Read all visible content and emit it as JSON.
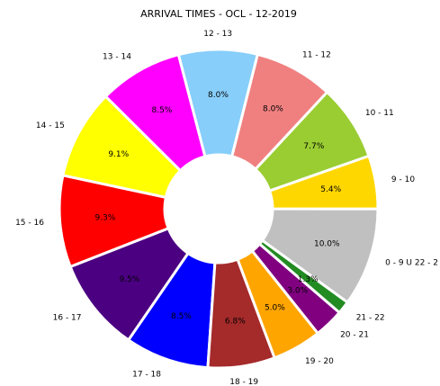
{
  "chart_data": {
    "type": "pie",
    "title": "ARRIVAL TIMES - OCL - 12-2019",
    "categories": [
      "0 - 9 U 22 - 2",
      "9 - 10",
      "10 - 11",
      "11 - 12",
      "12 - 13",
      "13 - 14",
      "14 - 15",
      "15 - 16",
      "16 - 17",
      "17 - 18",
      "18 - 19",
      "19 - 20",
      "20 - 21",
      "21 - 22"
    ],
    "values": [
      10.0,
      5.4,
      7.7,
      8.0,
      8.0,
      8.5,
      9.1,
      9.3,
      9.5,
      8.5,
      6.8,
      5.0,
      3.0,
      1.3
    ],
    "value_labels": [
      "10.0%",
      "5.4%",
      "7.7%",
      "8.0%",
      "8.0%",
      "8.5%",
      "9.1%",
      "9.3%",
      "9.5%",
      "8.5%",
      "6.8%",
      "5.0%",
      "3.0%",
      "1.3%"
    ],
    "colors": [
      "#c0c0c0",
      "#ffd700",
      "#9acd32",
      "#f08080",
      "#87cefa",
      "#ff00ff",
      "#ffff00",
      "#ff0000",
      "#4b0082",
      "#0000ff",
      "#a52a2a",
      "#ffa500",
      "#800080",
      "#228b22"
    ]
  }
}
